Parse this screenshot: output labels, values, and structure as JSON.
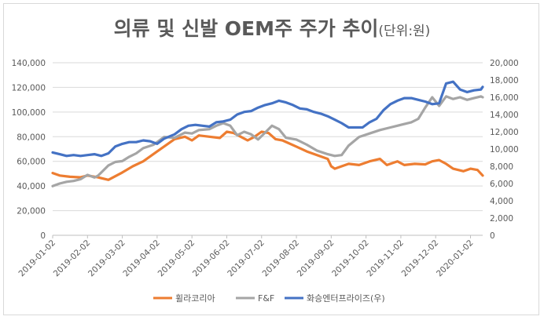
{
  "chart_data": {
    "type": "line",
    "title": "의류 및 신발 OEM주 주가 추이",
    "title_unit": "(단위:원)",
    "left_axis": {
      "ylim": [
        0,
        140000
      ],
      "ticks": [
        "0",
        "20,000",
        "40,000",
        "60,000",
        "80,000",
        "100,000",
        "120,000",
        "140,000"
      ]
    },
    "right_axis": {
      "ylim": [
        0,
        20000
      ],
      "ticks": [
        "0",
        "2,000",
        "4,000",
        "6,000",
        "8,000",
        "10,000",
        "12,000",
        "14,000",
        "16,000",
        "18,000",
        "20,000"
      ]
    },
    "x_ticks": [
      "2019-01-02",
      "2019-02-02",
      "2019-03-02",
      "2019-04-02",
      "2019-05-02",
      "2019-06-02",
      "2019-07-02",
      "2019-08-02",
      "2019-09-02",
      "2019-10-02",
      "2019-11-02",
      "2019-12-02",
      "2020-01-02"
    ],
    "x_range": [
      0,
      12.35
    ],
    "legend_position": "bottom",
    "grid": true,
    "series": [
      {
        "name": "휠라코리아",
        "axis": "left",
        "color": "#ED7D31",
        "points": [
          [
            0,
            50500
          ],
          [
            0.2,
            48500
          ],
          [
            0.5,
            47500
          ],
          [
            0.8,
            47000
          ],
          [
            1.0,
            48500
          ],
          [
            1.3,
            47000
          ],
          [
            1.6,
            45000
          ],
          [
            2.0,
            51000
          ],
          [
            2.3,
            56000
          ],
          [
            2.6,
            60000
          ],
          [
            3.0,
            68000
          ],
          [
            3.3,
            74000
          ],
          [
            3.5,
            78000
          ],
          [
            3.8,
            80000
          ],
          [
            4.0,
            77000
          ],
          [
            4.2,
            81000
          ],
          [
            4.5,
            80000
          ],
          [
            4.8,
            79000
          ],
          [
            5.0,
            84000
          ],
          [
            5.2,
            83000
          ],
          [
            5.4,
            80000
          ],
          [
            5.6,
            77000
          ],
          [
            5.8,
            80000
          ],
          [
            6.0,
            84000
          ],
          [
            6.2,
            83000
          ],
          [
            6.4,
            78000
          ],
          [
            6.6,
            77000
          ],
          [
            7.0,
            72000
          ],
          [
            7.3,
            68000
          ],
          [
            7.6,
            65000
          ],
          [
            7.9,
            62000
          ],
          [
            8.0,
            56000
          ],
          [
            8.1,
            54000
          ],
          [
            8.3,
            56000
          ],
          [
            8.5,
            58000
          ],
          [
            8.8,
            57000
          ],
          [
            9.1,
            60000
          ],
          [
            9.4,
            62000
          ],
          [
            9.6,
            57000
          ],
          [
            9.9,
            60000
          ],
          [
            10.1,
            57000
          ],
          [
            10.4,
            58000
          ],
          [
            10.7,
            57500
          ],
          [
            10.9,
            60000
          ],
          [
            11.1,
            61000
          ],
          [
            11.3,
            58000
          ],
          [
            11.5,
            54000
          ],
          [
            11.8,
            52000
          ],
          [
            12.0,
            54000
          ],
          [
            12.2,
            53000
          ],
          [
            12.35,
            48500
          ]
        ]
      },
      {
        "name": "F&F",
        "axis": "right",
        "color": "#A5A5A5",
        "points": [
          [
            0,
            5700
          ],
          [
            0.2,
            6000
          ],
          [
            0.4,
            6200
          ],
          [
            0.6,
            6300
          ],
          [
            0.8,
            6500
          ],
          [
            1.0,
            7000
          ],
          [
            1.2,
            6700
          ],
          [
            1.3,
            6900
          ],
          [
            1.6,
            8100
          ],
          [
            1.8,
            8500
          ],
          [
            2.0,
            8600
          ],
          [
            2.2,
            9100
          ],
          [
            2.4,
            9500
          ],
          [
            2.6,
            10100
          ],
          [
            2.9,
            10500
          ],
          [
            3.2,
            11400
          ],
          [
            3.5,
            11300
          ],
          [
            3.8,
            11900
          ],
          [
            4.0,
            11800
          ],
          [
            4.2,
            12200
          ],
          [
            4.5,
            12300
          ],
          [
            4.7,
            12700
          ],
          [
            4.9,
            13000
          ],
          [
            5.1,
            12700
          ],
          [
            5.3,
            11600
          ],
          [
            5.5,
            12000
          ],
          [
            5.7,
            11700
          ],
          [
            5.9,
            11100
          ],
          [
            6.1,
            11900
          ],
          [
            6.3,
            12700
          ],
          [
            6.5,
            12300
          ],
          [
            6.7,
            11300
          ],
          [
            7.0,
            11100
          ],
          [
            7.3,
            10500
          ],
          [
            7.6,
            9800
          ],
          [
            7.9,
            9400
          ],
          [
            8.1,
            9200
          ],
          [
            8.3,
            9300
          ],
          [
            8.5,
            10400
          ],
          [
            8.8,
            11400
          ],
          [
            9.1,
            11800
          ],
          [
            9.4,
            12200
          ],
          [
            9.7,
            12500
          ],
          [
            10.0,
            12800
          ],
          [
            10.3,
            13100
          ],
          [
            10.5,
            13500
          ],
          [
            10.7,
            14800
          ],
          [
            10.9,
            16000
          ],
          [
            11.1,
            15000
          ],
          [
            11.3,
            16100
          ],
          [
            11.5,
            15800
          ],
          [
            11.7,
            16000
          ],
          [
            11.9,
            15700
          ],
          [
            12.1,
            15900
          ],
          [
            12.3,
            16100
          ],
          [
            12.35,
            16000
          ]
        ]
      },
      {
        "name": "화승엔터프라이즈(우)",
        "axis": "right",
        "color": "#4472C4",
        "points": [
          [
            0,
            9600
          ],
          [
            0.2,
            9400
          ],
          [
            0.4,
            9200
          ],
          [
            0.6,
            9300
          ],
          [
            0.8,
            9200
          ],
          [
            1.0,
            9300
          ],
          [
            1.2,
            9400
          ],
          [
            1.4,
            9200
          ],
          [
            1.6,
            9500
          ],
          [
            1.8,
            10300
          ],
          [
            2.0,
            10600
          ],
          [
            2.2,
            10800
          ],
          [
            2.4,
            10800
          ],
          [
            2.6,
            11000
          ],
          [
            2.8,
            10900
          ],
          [
            3.0,
            10600
          ],
          [
            3.2,
            11200
          ],
          [
            3.5,
            11700
          ],
          [
            3.7,
            12300
          ],
          [
            3.9,
            12700
          ],
          [
            4.1,
            12800
          ],
          [
            4.3,
            12700
          ],
          [
            4.5,
            12600
          ],
          [
            4.7,
            13100
          ],
          [
            4.9,
            13200
          ],
          [
            5.1,
            13400
          ],
          [
            5.3,
            14000
          ],
          [
            5.5,
            14300
          ],
          [
            5.7,
            14400
          ],
          [
            5.9,
            14800
          ],
          [
            6.1,
            15100
          ],
          [
            6.3,
            15300
          ],
          [
            6.5,
            15600
          ],
          [
            6.7,
            15400
          ],
          [
            6.9,
            15100
          ],
          [
            7.1,
            14700
          ],
          [
            7.3,
            14600
          ],
          [
            7.5,
            14300
          ],
          [
            7.7,
            14100
          ],
          [
            7.9,
            13800
          ],
          [
            8.1,
            13400
          ],
          [
            8.3,
            13000
          ],
          [
            8.5,
            12500
          ],
          [
            8.7,
            12500
          ],
          [
            8.9,
            12500
          ],
          [
            9.1,
            13100
          ],
          [
            9.3,
            13500
          ],
          [
            9.5,
            14500
          ],
          [
            9.7,
            15200
          ],
          [
            9.9,
            15600
          ],
          [
            10.1,
            15900
          ],
          [
            10.3,
            15900
          ],
          [
            10.5,
            15700
          ],
          [
            10.7,
            15500
          ],
          [
            10.9,
            15200
          ],
          [
            11.1,
            15300
          ],
          [
            11.3,
            17600
          ],
          [
            11.5,
            17800
          ],
          [
            11.7,
            16900
          ],
          [
            11.9,
            16600
          ],
          [
            12.1,
            16800
          ],
          [
            12.3,
            16900
          ],
          [
            12.35,
            17200
          ]
        ]
      }
    ]
  }
}
